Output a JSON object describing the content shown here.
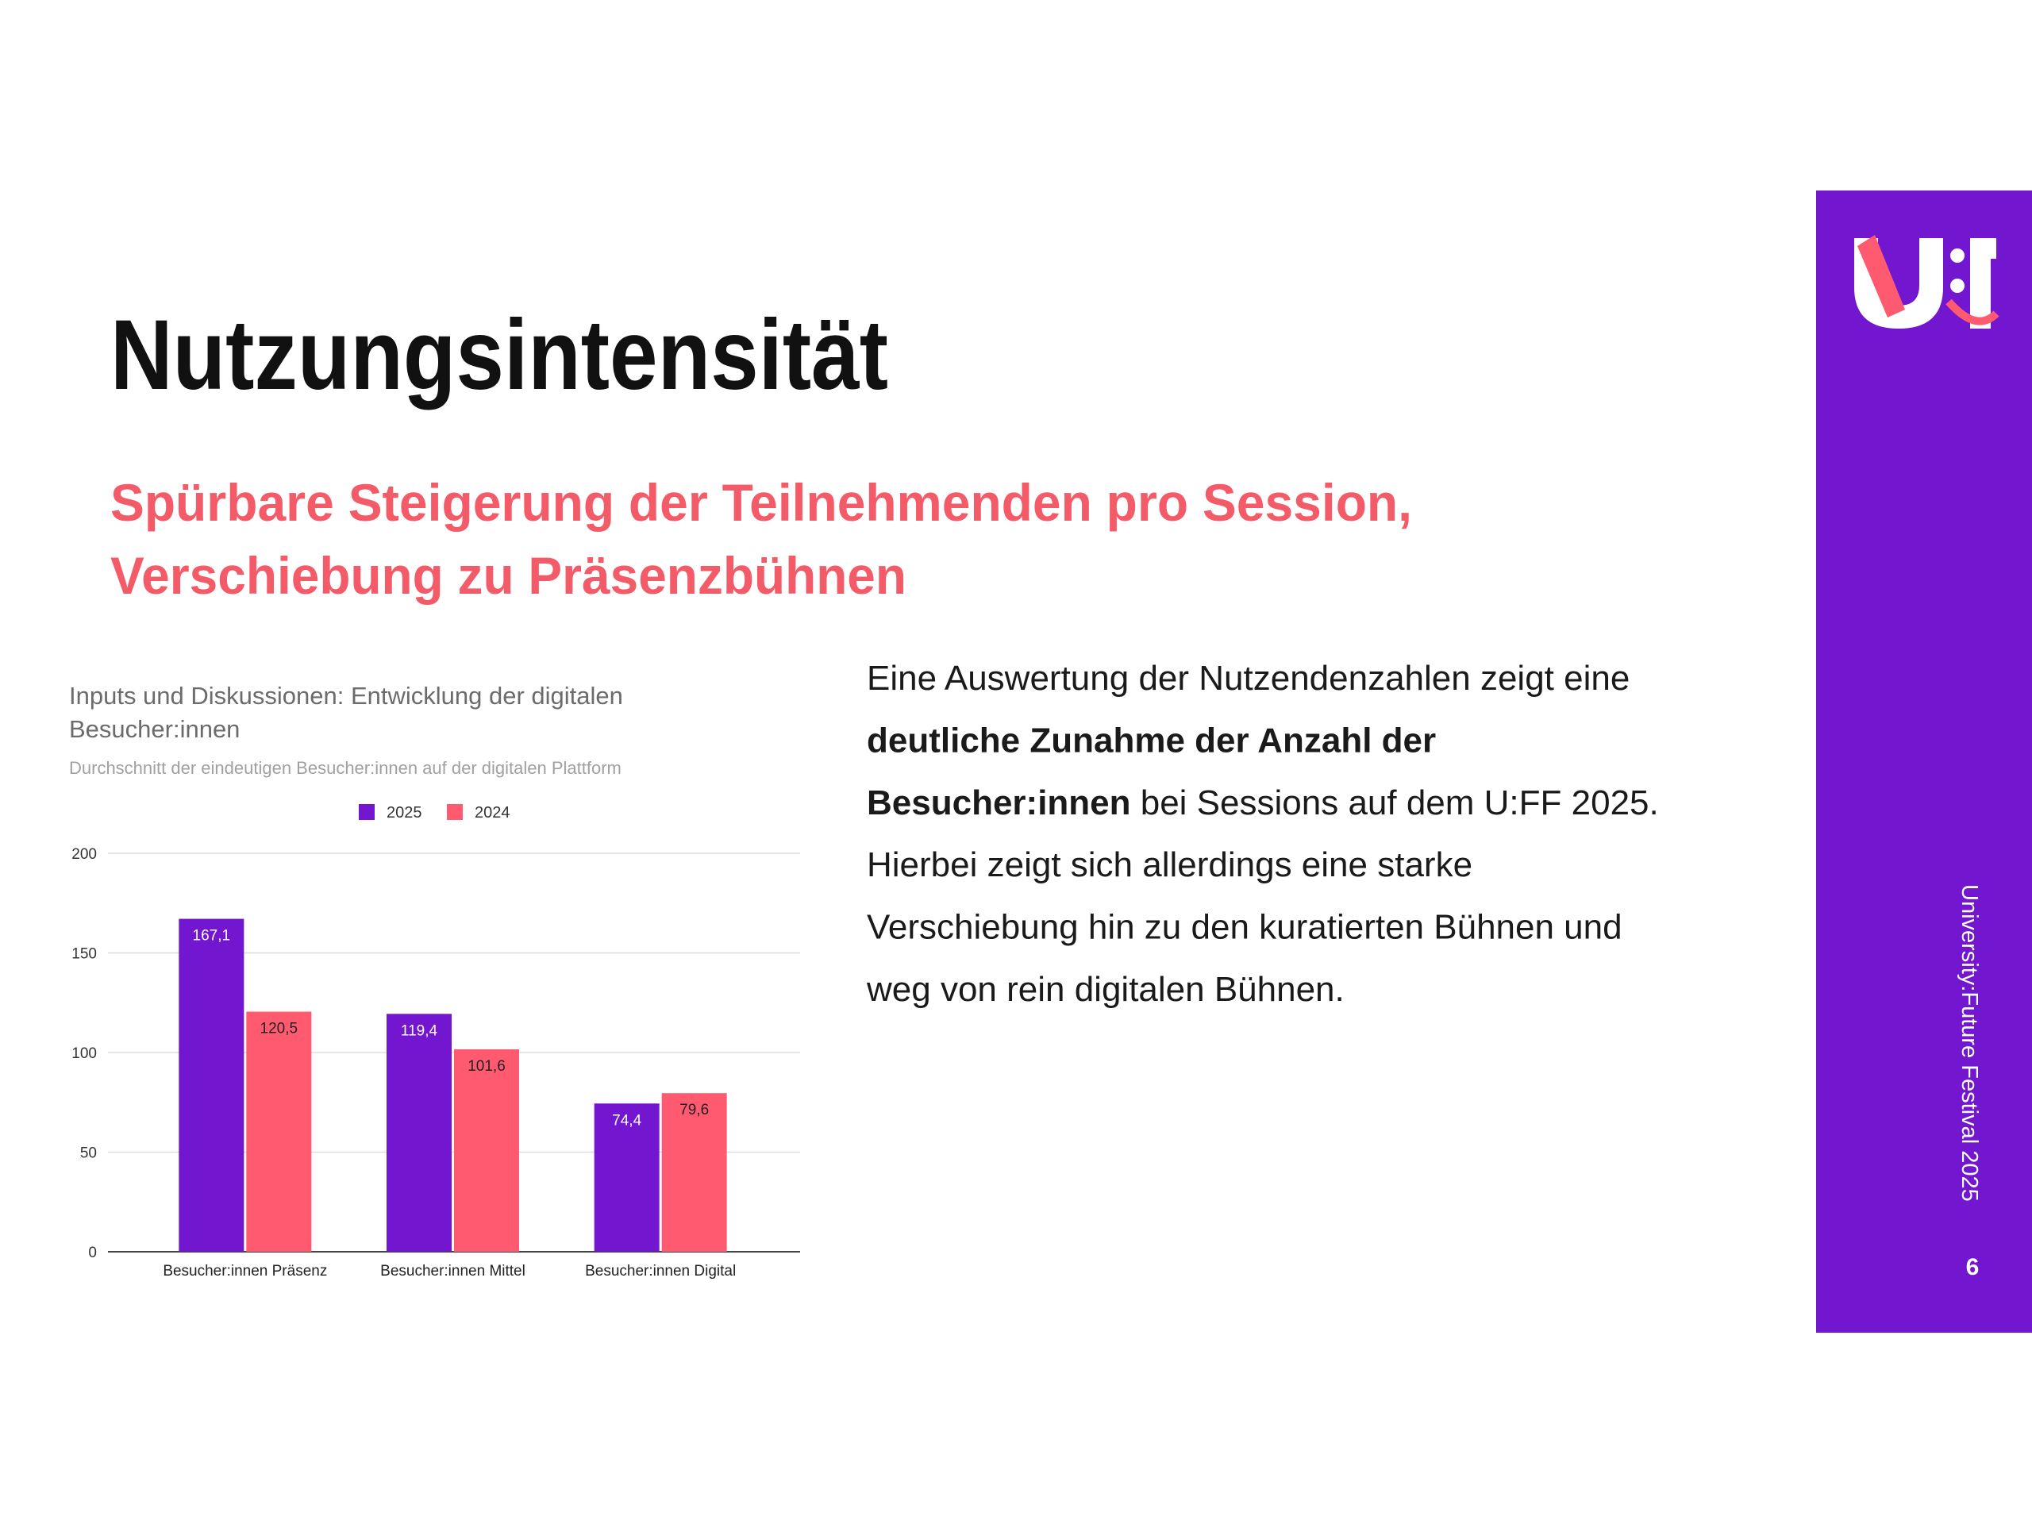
{
  "title": "Nutzungsintensität",
  "subtitle_lines": [
    "Spürbare Steigerung der Teilnehmenden pro Session,",
    "Verschiebung zu Präsenzbühnen"
  ],
  "body_lines": [
    [
      {
        "text": "Eine Auswertung der Nutzendenzahlen zeigt eine",
        "bold": false
      }
    ],
    [
      {
        "text": "deutliche Zunahme der Anzahl der",
        "bold": true
      }
    ],
    [
      {
        "text": "Besucher:innen",
        "bold": true
      },
      {
        "text": " bei Sessions auf dem U:FF 2025.",
        "bold": false
      }
    ],
    [
      {
        "text": "Hierbei zeigt sich allerdings eine starke",
        "bold": false
      }
    ],
    [
      {
        "text": "Verschiebung hin zu den kuratierten Bühnen und",
        "bold": false
      }
    ],
    [
      {
        "text": "weg von rein digitalen Bühnen.",
        "bold": false
      }
    ]
  ],
  "sidebar": {
    "caption": "University:Future Festival 2025",
    "page_number": "6"
  },
  "chart_data": {
    "type": "bar",
    "title_lines": [
      "Inputs und Diskussionen: Entwicklung der digitalen",
      "Besucher:innen"
    ],
    "subtitle": "Durchschnitt der eindeutigen Besucher:innen auf der digitalen Plattform",
    "categories": [
      "Besucher:innen Präsenz",
      "Besucher:innen Mittel",
      "Besucher:innen Digital"
    ],
    "series": [
      {
        "name": "2025",
        "color": "#7216d0",
        "values": [
          167.1,
          119.4,
          74.4
        ],
        "value_labels": [
          "167,1",
          "119,4",
          "74,4"
        ]
      },
      {
        "name": "2024",
        "color": "#ff5a6f",
        "values": [
          120.5,
          101.6,
          79.6
        ],
        "value_labels": [
          "120,5",
          "101,6",
          "79,6"
        ]
      }
    ],
    "ylim": [
      0,
      200
    ],
    "yticks": [
      0,
      50,
      100,
      150,
      200
    ],
    "grid": true
  }
}
